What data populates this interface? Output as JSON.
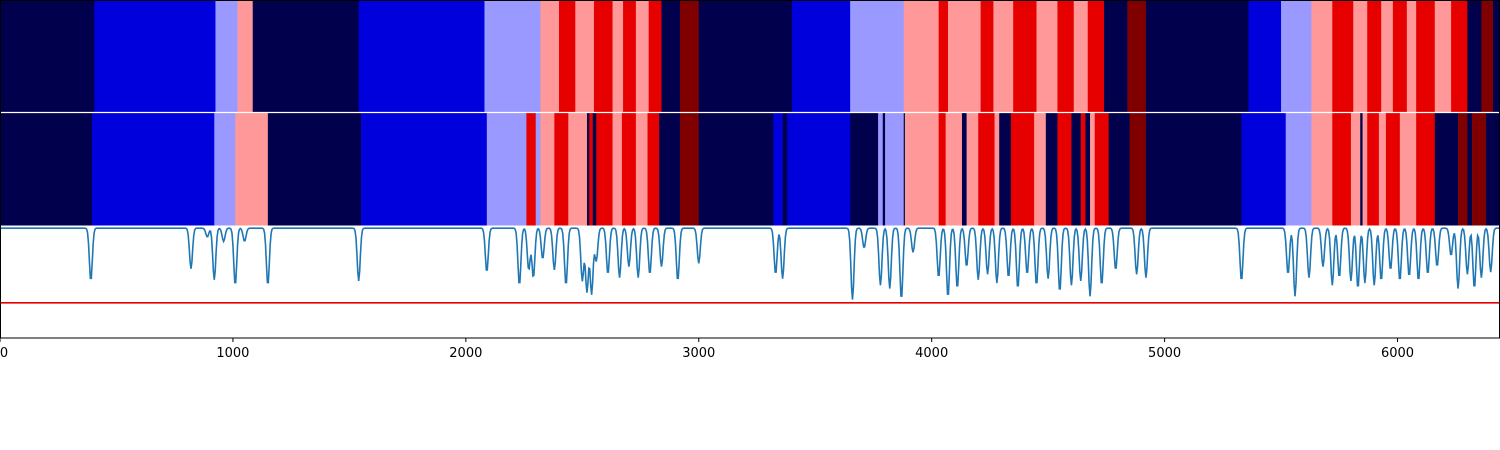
{
  "chart_data": [
    {
      "type": "heatmap",
      "name": "top-band",
      "xlim": [
        0,
        6440
      ],
      "colors": {
        "0": "#00004c",
        "1": "#0000dd",
        "2": "#9999ff",
        "3": "#ff9999",
        "4": "#e60000",
        "5": "#800000"
      },
      "segments": [
        [
          0,
          405,
          0
        ],
        [
          405,
          925,
          1
        ],
        [
          925,
          1020,
          2
        ],
        [
          1020,
          1085,
          3
        ],
        [
          1085,
          1540,
          0
        ],
        [
          1540,
          2080,
          1
        ],
        [
          2080,
          2320,
          2
        ],
        [
          2320,
          2400,
          3
        ],
        [
          2400,
          2470,
          4
        ],
        [
          2470,
          2550,
          3
        ],
        [
          2550,
          2630,
          4
        ],
        [
          2630,
          2675,
          3
        ],
        [
          2675,
          2730,
          4
        ],
        [
          2730,
          2785,
          3
        ],
        [
          2785,
          2840,
          4
        ],
        [
          2840,
          2920,
          0
        ],
        [
          2920,
          3000,
          5
        ],
        [
          3000,
          3400,
          0
        ],
        [
          3400,
          3650,
          1
        ],
        [
          3650,
          3880,
          2
        ],
        [
          3880,
          4030,
          3
        ],
        [
          4030,
          4070,
          4
        ],
        [
          4070,
          4210,
          3
        ],
        [
          4210,
          4265,
          4
        ],
        [
          4265,
          4350,
          3
        ],
        [
          4350,
          4450,
          4
        ],
        [
          4450,
          4540,
          3
        ],
        [
          4540,
          4610,
          4
        ],
        [
          4610,
          4670,
          3
        ],
        [
          4670,
          4740,
          4
        ],
        [
          4740,
          4840,
          0
        ],
        [
          4840,
          4920,
          5
        ],
        [
          4920,
          5360,
          0
        ],
        [
          5360,
          5500,
          1
        ],
        [
          5500,
          5630,
          2
        ],
        [
          5630,
          5720,
          3
        ],
        [
          5720,
          5810,
          4
        ],
        [
          5810,
          5870,
          3
        ],
        [
          5870,
          5930,
          4
        ],
        [
          5930,
          5980,
          3
        ],
        [
          5980,
          6040,
          4
        ],
        [
          6040,
          6080,
          3
        ],
        [
          6080,
          6160,
          4
        ],
        [
          6160,
          6230,
          3
        ],
        [
          6230,
          6300,
          4
        ],
        [
          6300,
          6360,
          0
        ],
        [
          6360,
          6410,
          5
        ],
        [
          6410,
          6440,
          0
        ]
      ]
    },
    {
      "type": "heatmap",
      "name": "middle-band",
      "xlim": [
        0,
        6440
      ],
      "colors": {
        "0": "#00004c",
        "1": "#0000dd",
        "2": "#9999ff",
        "3": "#ff9999",
        "4": "#e60000",
        "5": "#800000"
      },
      "segments": [
        [
          0,
          395,
          0
        ],
        [
          395,
          920,
          1
        ],
        [
          920,
          1010,
          2
        ],
        [
          1010,
          1150,
          3
        ],
        [
          1150,
          1550,
          0
        ],
        [
          1550,
          2090,
          1
        ],
        [
          2090,
          2260,
          2
        ],
        [
          2260,
          2300,
          4
        ],
        [
          2300,
          2320,
          2
        ],
        [
          2320,
          2380,
          3
        ],
        [
          2380,
          2440,
          4
        ],
        [
          2440,
          2520,
          3
        ],
        [
          2520,
          2530,
          0
        ],
        [
          2530,
          2545,
          4
        ],
        [
          2545,
          2560,
          0
        ],
        [
          2560,
          2630,
          4
        ],
        [
          2630,
          2670,
          3
        ],
        [
          2670,
          2730,
          4
        ],
        [
          2730,
          2780,
          3
        ],
        [
          2780,
          2830,
          4
        ],
        [
          2830,
          2920,
          0
        ],
        [
          2920,
          3000,
          5
        ],
        [
          3000,
          3320,
          0
        ],
        [
          3320,
          3360,
          1
        ],
        [
          3360,
          3380,
          0
        ],
        [
          3380,
          3650,
          1
        ],
        [
          3650,
          3770,
          0
        ],
        [
          3770,
          3790,
          2
        ],
        [
          3790,
          3800,
          0
        ],
        [
          3800,
          3880,
          2
        ],
        [
          3880,
          3885,
          0
        ],
        [
          3885,
          4030,
          3
        ],
        [
          4030,
          4060,
          4
        ],
        [
          4060,
          4130,
          3
        ],
        [
          4130,
          4150,
          0
        ],
        [
          4150,
          4200,
          3
        ],
        [
          4200,
          4270,
          4
        ],
        [
          4270,
          4290,
          3
        ],
        [
          4290,
          4340,
          0
        ],
        [
          4340,
          4440,
          4
        ],
        [
          4440,
          4490,
          3
        ],
        [
          4490,
          4540,
          0
        ],
        [
          4540,
          4600,
          4
        ],
        [
          4600,
          4640,
          0
        ],
        [
          4640,
          4660,
          4
        ],
        [
          4660,
          4680,
          0
        ],
        [
          4680,
          4700,
          3
        ],
        [
          4700,
          4760,
          4
        ],
        [
          4760,
          4850,
          0
        ],
        [
          4850,
          4920,
          5
        ],
        [
          4920,
          5330,
          0
        ],
        [
          5330,
          5520,
          1
        ],
        [
          5520,
          5630,
          2
        ],
        [
          5630,
          5720,
          3
        ],
        [
          5720,
          5800,
          4
        ],
        [
          5800,
          5840,
          3
        ],
        [
          5840,
          5850,
          0
        ],
        [
          5850,
          5870,
          3
        ],
        [
          5870,
          5920,
          4
        ],
        [
          5920,
          5950,
          3
        ],
        [
          5950,
          6010,
          4
        ],
        [
          6010,
          6080,
          3
        ],
        [
          6080,
          6160,
          4
        ],
        [
          6160,
          6260,
          0
        ],
        [
          6260,
          6300,
          5
        ],
        [
          6300,
          6320,
          0
        ],
        [
          6320,
          6380,
          5
        ],
        [
          6380,
          6440,
          0
        ]
      ]
    },
    {
      "type": "line",
      "name": "signal",
      "xlim": [
        0,
        6440
      ],
      "ylim": [
        -1.0,
        0.02
      ],
      "threshold": -0.68,
      "line_color": "#1f77b4",
      "threshold_color": "#e60000",
      "baseline": 0.0,
      "dips": [
        [
          390,
          -0.48
        ],
        [
          820,
          -0.37
        ],
        [
          890,
          -0.08
        ],
        [
          920,
          -0.47
        ],
        [
          960,
          -0.12
        ],
        [
          1010,
          -0.52
        ],
        [
          1050,
          -0.12
        ],
        [
          1150,
          -0.52
        ],
        [
          1540,
          -0.48
        ],
        [
          2090,
          -0.4
        ],
        [
          2230,
          -0.52
        ],
        [
          2270,
          -0.38
        ],
        [
          2290,
          -0.45
        ],
        [
          2330,
          -0.28
        ],
        [
          2380,
          -0.38
        ],
        [
          2430,
          -0.52
        ],
        [
          2500,
          -0.48
        ],
        [
          2520,
          -0.58
        ],
        [
          2540,
          -0.6
        ],
        [
          2560,
          -0.3
        ],
        [
          2610,
          -0.42
        ],
        [
          2660,
          -0.45
        ],
        [
          2700,
          -0.35
        ],
        [
          2740,
          -0.45
        ],
        [
          2790,
          -0.42
        ],
        [
          2840,
          -0.35
        ],
        [
          2910,
          -0.48
        ],
        [
          3000,
          -0.32
        ],
        [
          3330,
          -0.42
        ],
        [
          3360,
          -0.46
        ],
        [
          3660,
          -0.65
        ],
        [
          3710,
          -0.18
        ],
        [
          3780,
          -0.52
        ],
        [
          3820,
          -0.55
        ],
        [
          3870,
          -0.65
        ],
        [
          3920,
          -0.22
        ],
        [
          4030,
          -0.45
        ],
        [
          4070,
          -0.63
        ],
        [
          4110,
          -0.55
        ],
        [
          4150,
          -0.35
        ],
        [
          4200,
          -0.47
        ],
        [
          4240,
          -0.42
        ],
        [
          4280,
          -0.5
        ],
        [
          4330,
          -0.45
        ],
        [
          4370,
          -0.55
        ],
        [
          4410,
          -0.42
        ],
        [
          4450,
          -0.52
        ],
        [
          4500,
          -0.46
        ],
        [
          4550,
          -0.58
        ],
        [
          4600,
          -0.52
        ],
        [
          4640,
          -0.48
        ],
        [
          4680,
          -0.62
        ],
        [
          4730,
          -0.52
        ],
        [
          4790,
          -0.38
        ],
        [
          4880,
          -0.42
        ],
        [
          4920,
          -0.45
        ],
        [
          5330,
          -0.48
        ],
        [
          5530,
          -0.42
        ],
        [
          5560,
          -0.62
        ],
        [
          5620,
          -0.45
        ],
        [
          5680,
          -0.35
        ],
        [
          5720,
          -0.52
        ],
        [
          5750,
          -0.45
        ],
        [
          5800,
          -0.48
        ],
        [
          5830,
          -0.55
        ],
        [
          5860,
          -0.5
        ],
        [
          5900,
          -0.52
        ],
        [
          5930,
          -0.48
        ],
        [
          5970,
          -0.38
        ],
        [
          6010,
          -0.48
        ],
        [
          6050,
          -0.44
        ],
        [
          6090,
          -0.48
        ],
        [
          6130,
          -0.42
        ],
        [
          6170,
          -0.35
        ],
        [
          6230,
          -0.25
        ],
        [
          6260,
          -0.55
        ],
        [
          6300,
          -0.42
        ],
        [
          6330,
          -0.55
        ],
        [
          6360,
          -0.45
        ],
        [
          6400,
          -0.4
        ]
      ]
    }
  ],
  "x_axis": {
    "ticks": [
      0,
      1000,
      2000,
      3000,
      4000,
      5000,
      6000
    ],
    "labels": [
      "0",
      "1000",
      "2000",
      "3000",
      "4000",
      "5000",
      "6000"
    ]
  }
}
